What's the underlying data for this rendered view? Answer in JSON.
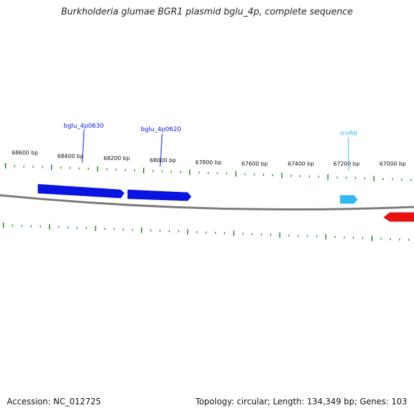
{
  "title": "Burkholderia glumae BGR1 plasmid bglu_4p, complete sequence",
  "accession": "Accession: NC_012725",
  "summary": "Topology: circular; Length: 134,349 bp; Genes: 103",
  "colors": {
    "backbone": "#7a7a7a",
    "tick": "#2e8b2e",
    "cds": "#0a14e0",
    "trna": "#35b8f0",
    "other": "#e81010"
  },
  "ticks": [
    "68600 bp",
    "68400 bp",
    "68200 bp",
    "68000 bp",
    "67800 bp",
    "67600 bp",
    "67400 bp",
    "67200 bp",
    "67000 bp"
  ],
  "features": [
    {
      "name": "bglu_4p0630",
      "type": "CDS",
      "strand": "forward",
      "color": "#0a14e0"
    },
    {
      "name": "bglu_4p0620",
      "type": "CDS",
      "strand": "forward",
      "color": "#0a14e0"
    },
    {
      "name": "trnR6",
      "type": "tRNA",
      "strand": "forward",
      "color": "#35b8f0"
    },
    {
      "name": "",
      "type": "CDS",
      "strand": "reverse",
      "color": "#e81010"
    }
  ]
}
